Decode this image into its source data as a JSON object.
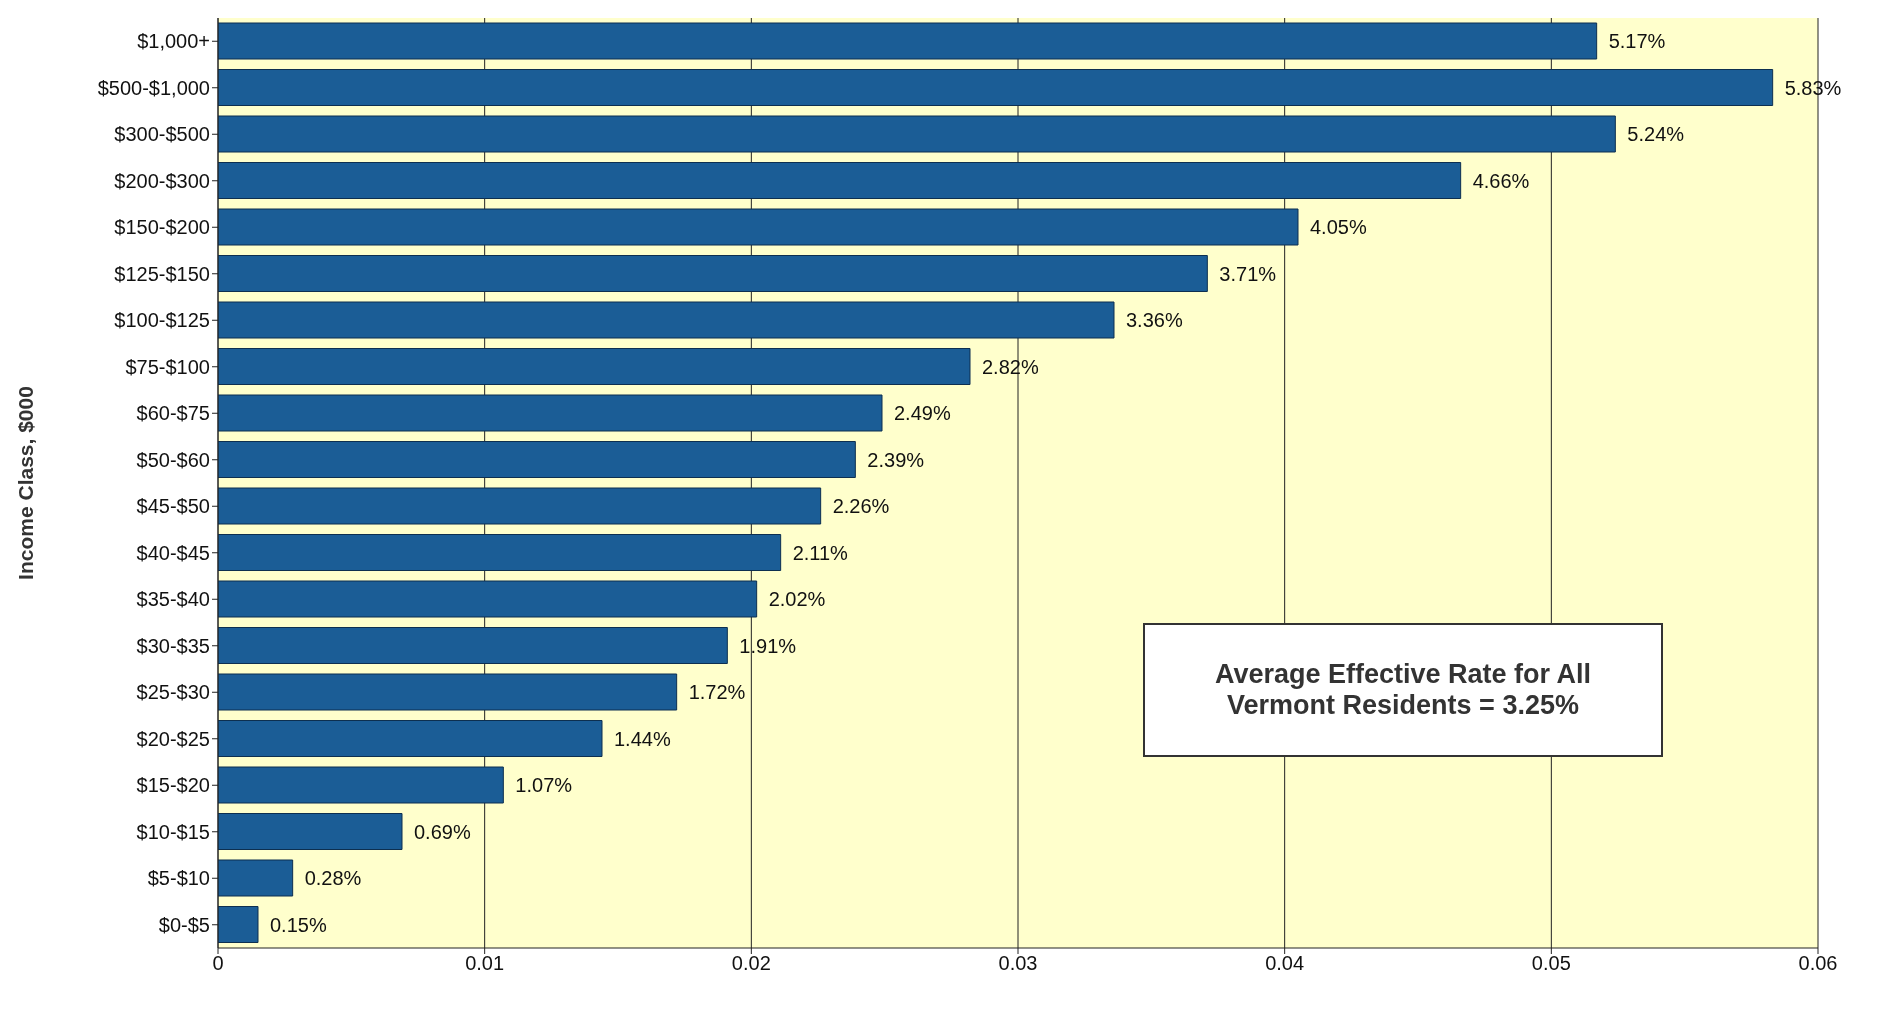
{
  "chart_data": {
    "type": "bar",
    "orientation": "horizontal",
    "ylabel": "Income Class, $000",
    "categories": [
      "$1,000+",
      "$500-$1,000",
      "$300-$500",
      "$200-$300",
      "$150-$200",
      "$125-$150",
      "$100-$125",
      "$75-$100",
      "$60-$75",
      "$50-$60",
      "$45-$50",
      "$40-$45",
      "$35-$40",
      "$30-$35",
      "$25-$30",
      "$20-$25",
      "$15-$20",
      "$10-$15",
      "$5-$10",
      "$0-$5"
    ],
    "values": [
      0.0517,
      0.0583,
      0.0524,
      0.0466,
      0.0405,
      0.0371,
      0.0336,
      0.0282,
      0.0249,
      0.0239,
      0.0226,
      0.0211,
      0.0202,
      0.0191,
      0.0172,
      0.0144,
      0.0107,
      0.0069,
      0.0028,
      0.0015
    ],
    "value_labels": [
      "5.17%",
      "5.83%",
      "5.24%",
      "4.66%",
      "4.05%",
      "3.71%",
      "3.36%",
      "2.82%",
      "2.49%",
      "2.39%",
      "2.26%",
      "2.11%",
      "2.02%",
      "1.91%",
      "1.72%",
      "1.44%",
      "1.07%",
      "0.69%",
      "0.28%",
      "0.15%"
    ],
    "color": "#1b5d96",
    "xlim": [
      0,
      0.06
    ],
    "xticks": [
      0,
      0.01,
      0.02,
      0.03,
      0.04,
      0.05,
      0.06
    ],
    "grid": "x",
    "annotations": [
      "Average Effective Rate for All Vermont Residents = 3.25%"
    ]
  }
}
